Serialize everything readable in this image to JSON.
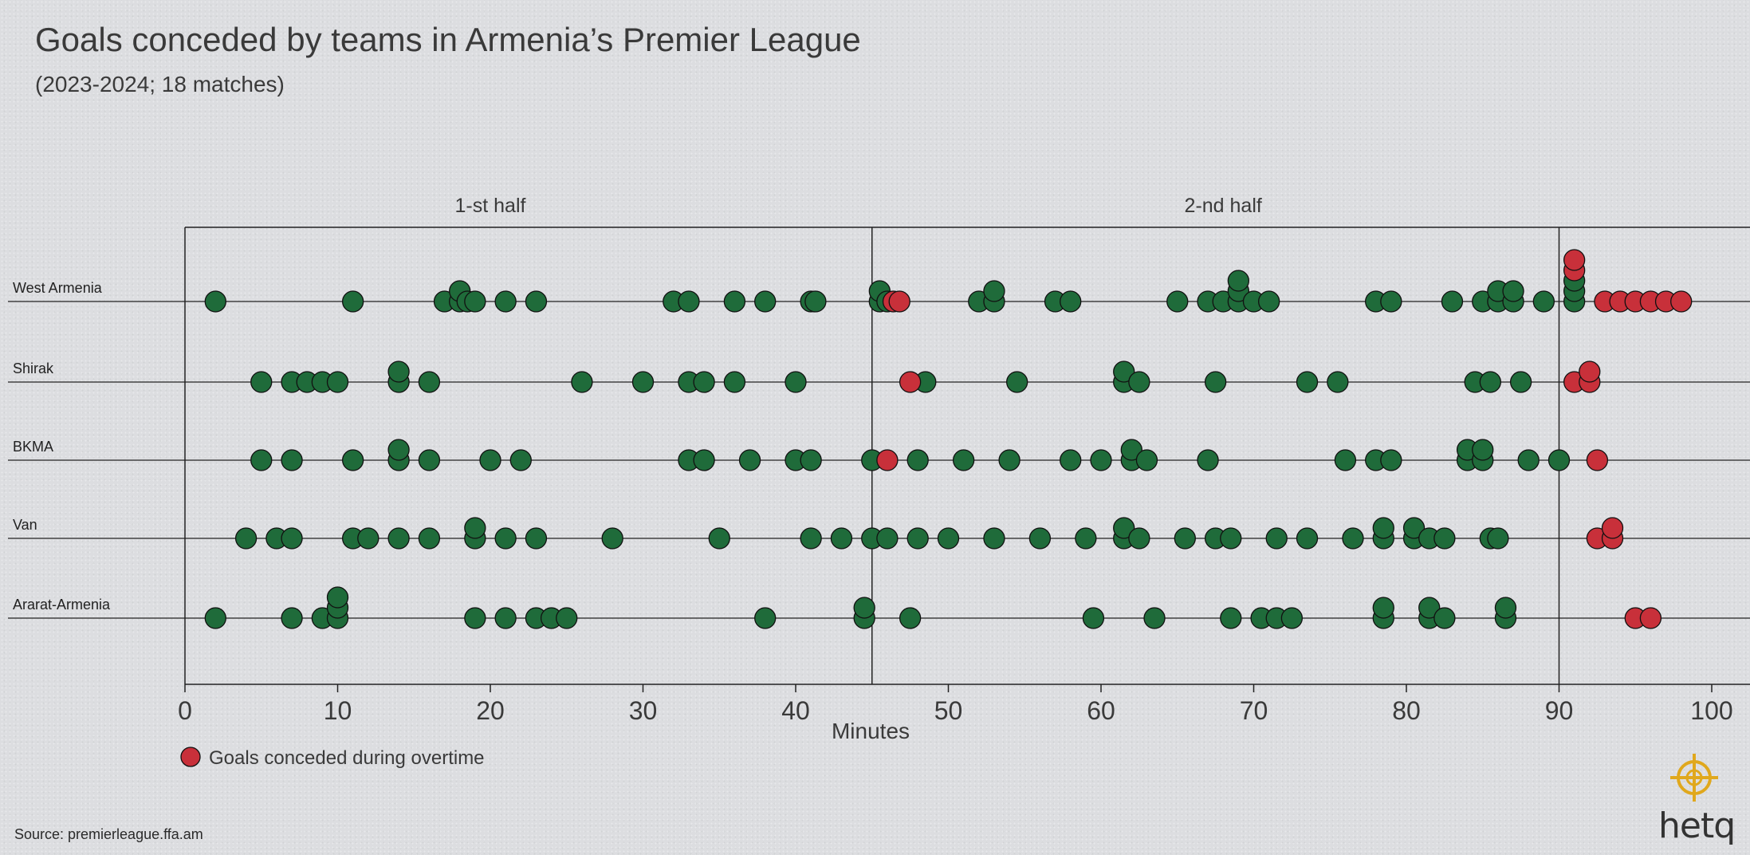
{
  "header": {
    "title": "Goals conceded by teams in Armenia’s Premier League",
    "subtitle": "(2023-2024; 18 matches)"
  },
  "footer": {
    "source": "Source: premierleague.ffa.am",
    "brand": "hetq"
  },
  "colors": {
    "regular": "#1f6b3a",
    "overtime": "#c8303a",
    "stroke": "#111111",
    "axis": "#222222"
  },
  "chart_data": {
    "type": "scatter",
    "title": "Goals conceded by teams in Armenia’s Premier League",
    "subtitle": "(2023-2024; 18 matches)",
    "xlabel": "Minutes",
    "ylabel": "",
    "xlim": [
      0,
      102
    ],
    "xticks": [
      0,
      10,
      20,
      30,
      40,
      50,
      60,
      70,
      80,
      90,
      100
    ],
    "half_labels": [
      {
        "label": "1-st half",
        "x": 20
      },
      {
        "label": "2-nd half",
        "x": 68
      }
    ],
    "half_dividers": [
      45,
      90
    ],
    "legend": {
      "label": "Goals conceded during overtime",
      "placement": "bottom-left"
    },
    "grid": false,
    "categories": [
      "West Armenia",
      "Shirak",
      "BKMA",
      "Van",
      "Ararat-Armenia"
    ],
    "series": [
      {
        "team": "West Armenia",
        "goals": [
          2,
          11,
          17,
          18,
          18,
          18.5,
          19,
          21,
          23,
          32,
          33,
          36,
          38,
          41,
          41.3,
          45.5,
          45.5,
          46,
          52,
          53,
          53,
          57,
          58,
          65,
          67,
          68,
          69,
          69,
          69,
          70,
          71,
          78,
          79,
          83,
          85,
          86,
          86,
          87,
          87,
          89,
          91,
          91,
          91
        ],
        "overtime": [
          46.4,
          46.8,
          91,
          91,
          93,
          94,
          95,
          96,
          97,
          98
        ]
      },
      {
        "team": "Shirak",
        "goals": [
          5,
          7,
          8,
          9,
          10,
          14,
          14,
          16,
          26,
          30,
          33,
          34,
          36,
          40,
          48.5,
          54.5,
          61.5,
          61.5,
          62.5,
          67.5,
          73.5,
          75.5,
          84.5,
          85.5,
          87.5
        ],
        "overtime": [
          47.5,
          91,
          92,
          92
        ]
      },
      {
        "team": "BKMA",
        "goals": [
          5,
          7,
          11,
          14,
          14,
          16,
          20,
          22,
          33,
          34,
          37,
          40,
          41,
          45,
          48,
          51,
          54,
          58,
          60,
          62,
          62,
          63,
          67,
          76,
          78,
          79,
          84,
          84,
          85,
          85,
          88,
          90
        ],
        "overtime": [
          46,
          92.5
        ]
      },
      {
        "team": "Van",
        "goals": [
          4,
          6,
          7,
          11,
          12,
          14,
          16,
          19,
          19,
          21,
          23,
          28,
          35,
          41,
          43,
          45,
          46,
          48,
          50,
          53,
          56,
          59,
          61.5,
          61.5,
          62.5,
          65.5,
          67.5,
          68.5,
          71.5,
          73.5,
          76.5,
          78.5,
          78.5,
          80.5,
          80.5,
          81.5,
          82.5,
          85.5,
          86
        ],
        "overtime": [
          92.5,
          93.5,
          93.5
        ]
      },
      {
        "team": "Ararat-Armenia",
        "goals": [
          2,
          7,
          9,
          10,
          10,
          10,
          19,
          21,
          23,
          24,
          25,
          38,
          44.5,
          44.5,
          47.5,
          59.5,
          63.5,
          68.5,
          70.5,
          71.5,
          72.5,
          78.5,
          78.5,
          81.5,
          81.5,
          82.5,
          86.5,
          86.5
        ],
        "overtime": [
          95,
          96
        ]
      }
    ]
  }
}
